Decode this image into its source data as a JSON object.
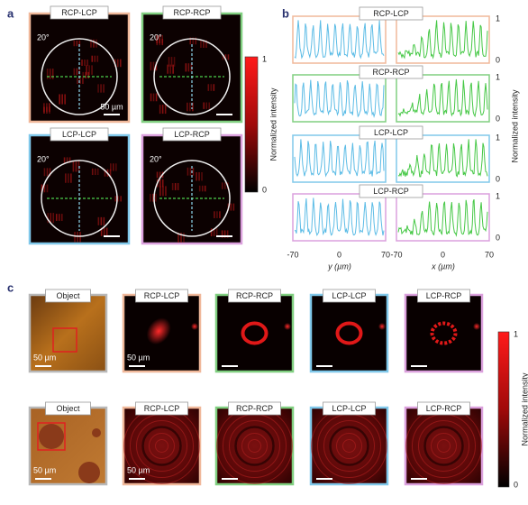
{
  "panel_a": {
    "label": "a",
    "images": [
      {
        "label": "RCP-LCP",
        "angle": "20°",
        "scale": "50 µm"
      },
      {
        "label": "RCP-RCP",
        "angle": "20°"
      },
      {
        "label": "LCP-LCP",
        "angle": "20°"
      },
      {
        "label": "LCP-RCP",
        "angle": "20°"
      }
    ],
    "colorbar": {
      "max": 1,
      "min": 0,
      "title": "Normalized intensity"
    }
  },
  "panel_b": {
    "label": "b",
    "rows": [
      "RCP-LCP",
      "RCP-RCP",
      "LCP-LCP",
      "LCP-RCP"
    ],
    "y_ticks": [
      1,
      0
    ],
    "y_axis_title": "Normalized intensity",
    "x_ticks": [
      -70,
      0,
      70
    ],
    "left_axis_title": "y (µm)",
    "right_axis_title": "x (µm)"
  },
  "panel_c": {
    "label": "c",
    "rows": [
      {
        "cells": [
          "Object",
          "RCP-LCP",
          "RCP-RCP",
          "LCP-LCP",
          "LCP-RCP"
        ],
        "scales": [
          "50 µm",
          "50 µm"
        ]
      },
      {
        "cells": [
          "Object",
          "RCP-LCP",
          "RCP-RCP",
          "LCP-LCP",
          "LCP-RCP"
        ],
        "scales": [
          "50 µm",
          "50 µm"
        ]
      }
    ],
    "colorbar": {
      "max": 1,
      "min": 0,
      "title": "Normalized intensity"
    }
  }
}
